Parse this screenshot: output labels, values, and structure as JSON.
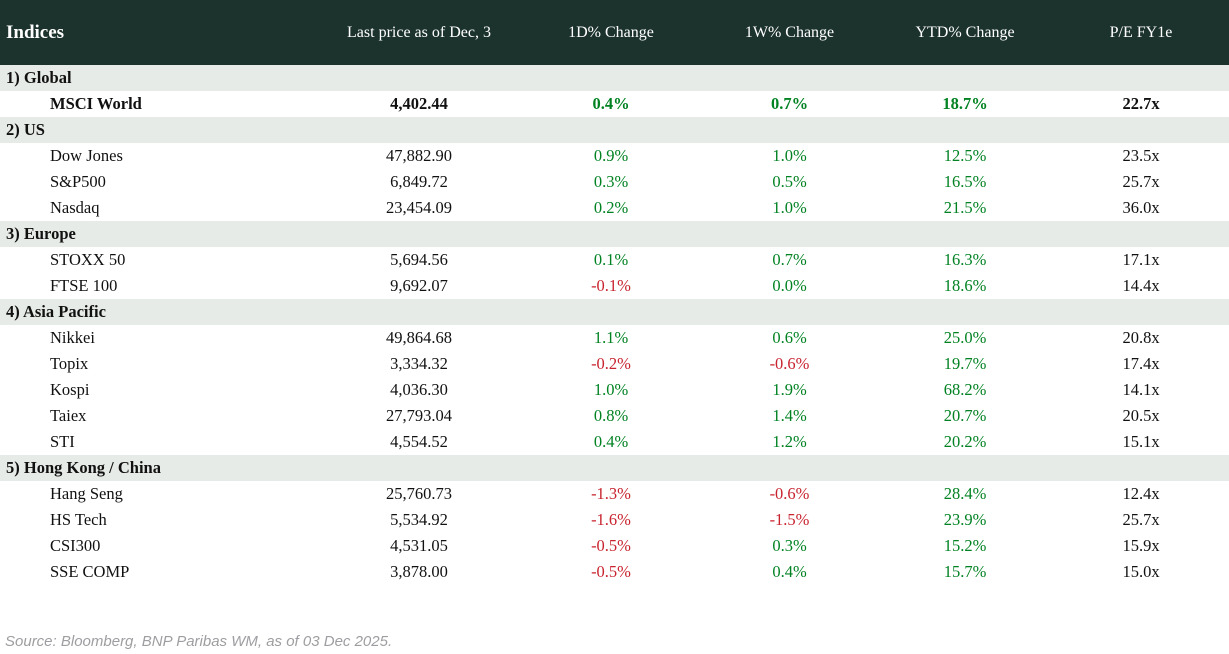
{
  "table": {
    "title": "Indices",
    "columns": [
      "Last price as of Dec, 3",
      "1D% Change",
      "1W% Change",
      "YTD% Change",
      "P/E FY1e"
    ],
    "sections": [
      {
        "label": "1) Global",
        "rows": [
          {
            "name": "MSCI World",
            "last_price": "4,402.44",
            "d1_change": "0.4%",
            "w1_change": "0.7%",
            "ytd_change": "18.7%",
            "pe": "22.7x",
            "bold": true
          }
        ]
      },
      {
        "label": "2) US",
        "rows": [
          {
            "name": "Dow Jones",
            "last_price": "47,882.90",
            "d1_change": "0.9%",
            "w1_change": "1.0%",
            "ytd_change": "12.5%",
            "pe": "23.5x",
            "bold": false
          },
          {
            "name": "S&P500",
            "last_price": "6,849.72",
            "d1_change": "0.3%",
            "w1_change": "0.5%",
            "ytd_change": "16.5%",
            "pe": "25.7x",
            "bold": false
          },
          {
            "name": "Nasdaq",
            "last_price": "23,454.09",
            "d1_change": "0.2%",
            "w1_change": "1.0%",
            "ytd_change": "21.5%",
            "pe": "36.0x",
            "bold": false
          }
        ]
      },
      {
        "label": "3) Europe",
        "rows": [
          {
            "name": "STOXX 50",
            "last_price": "5,694.56",
            "d1_change": "0.1%",
            "w1_change": "0.7%",
            "ytd_change": "16.3%",
            "pe": "17.1x",
            "bold": false
          },
          {
            "name": "FTSE 100",
            "last_price": "9,692.07",
            "d1_change": "-0.1%",
            "w1_change": "0.0%",
            "ytd_change": "18.6%",
            "pe": "14.4x",
            "bold": false
          }
        ]
      },
      {
        "label": "4) Asia Pacific",
        "rows": [
          {
            "name": "Nikkei",
            "last_price": "49,864.68",
            "d1_change": "1.1%",
            "w1_change": "0.6%",
            "ytd_change": "25.0%",
            "pe": "20.8x",
            "bold": false
          },
          {
            "name": "Topix",
            "last_price": "3,334.32",
            "d1_change": "-0.2%",
            "w1_change": "-0.6%",
            "ytd_change": "19.7%",
            "pe": "17.4x",
            "bold": false
          },
          {
            "name": "Kospi",
            "last_price": "4,036.30",
            "d1_change": "1.0%",
            "w1_change": "1.9%",
            "ytd_change": "68.2%",
            "pe": "14.1x",
            "bold": false
          },
          {
            "name": "Taiex",
            "last_price": "27,793.04",
            "d1_change": "0.8%",
            "w1_change": "1.4%",
            "ytd_change": "20.7%",
            "pe": "20.5x",
            "bold": false
          },
          {
            "name": "STI",
            "last_price": "4,554.52",
            "d1_change": "0.4%",
            "w1_change": "1.2%",
            "ytd_change": "20.2%",
            "pe": "15.1x",
            "bold": false
          }
        ]
      },
      {
        "label": "5) Hong Kong / China",
        "rows": [
          {
            "name": "Hang Seng",
            "last_price": "25,760.73",
            "d1_change": "-1.3%",
            "w1_change": "-0.6%",
            "ytd_change": "28.4%",
            "pe": "12.4x",
            "bold": false
          },
          {
            "name": "HS Tech",
            "last_price": "5,534.92",
            "d1_change": "-1.6%",
            "w1_change": "-1.5%",
            "ytd_change": "23.9%",
            "pe": "25.7x",
            "bold": false
          },
          {
            "name": "CSI300",
            "last_price": "4,531.05",
            "d1_change": "-0.5%",
            "w1_change": "0.3%",
            "ytd_change": "15.2%",
            "pe": "15.9x",
            "bold": false
          },
          {
            "name": "SSE COMP",
            "last_price": "3,878.00",
            "d1_change": "-0.5%",
            "w1_change": "0.4%",
            "ytd_change": "15.7%",
            "pe": "15.0x",
            "bold": false
          }
        ]
      }
    ]
  },
  "chart_data": {
    "type": "table",
    "title": "Indices",
    "columns": [
      "Indices",
      "Last price as of Dec, 3",
      "1D% Change",
      "1W% Change",
      "YTD% Change",
      "P/E FY1e"
    ],
    "rows": [
      [
        "MSCI World",
        4402.44,
        0.4,
        0.7,
        18.7,
        22.7
      ],
      [
        "Dow Jones",
        47882.9,
        0.9,
        1.0,
        12.5,
        23.5
      ],
      [
        "S&P500",
        6849.72,
        0.3,
        0.5,
        16.5,
        25.7
      ],
      [
        "Nasdaq",
        23454.09,
        0.2,
        1.0,
        21.5,
        36.0
      ],
      [
        "STOXX 50",
        5694.56,
        0.1,
        0.7,
        16.3,
        17.1
      ],
      [
        "FTSE 100",
        9692.07,
        -0.1,
        0.0,
        18.6,
        14.4
      ],
      [
        "Nikkei",
        49864.68,
        1.1,
        0.6,
        25.0,
        20.8
      ],
      [
        "Topix",
        3334.32,
        -0.2,
        -0.6,
        19.7,
        17.4
      ],
      [
        "Kospi",
        4036.3,
        1.0,
        1.9,
        68.2,
        14.1
      ],
      [
        "Taiex",
        27793.04,
        0.8,
        1.4,
        20.7,
        20.5
      ],
      [
        "STI",
        4554.52,
        0.4,
        1.2,
        20.2,
        15.1
      ],
      [
        "Hang Seng",
        25760.73,
        -1.3,
        -0.6,
        28.4,
        12.4
      ],
      [
        "HS Tech",
        5534.92,
        -1.6,
        -1.5,
        23.9,
        25.7
      ],
      [
        "CSI300",
        4531.05,
        -0.5,
        0.3,
        15.2,
        15.9
      ],
      [
        "SSE COMP",
        3878.0,
        -0.5,
        0.4,
        15.7,
        15.0
      ]
    ]
  },
  "footer": {
    "source": "Source: Bloomberg, BNP Paribas WM, as of 03 Dec 2025."
  },
  "colors": {
    "header_bg": "#1c332d",
    "header_text": "#ffffff",
    "section_bg": "#e7ebe7",
    "positive": "#008222",
    "negative": "#c8232e",
    "text": "#111111",
    "footer_text": "#9e9ea2"
  }
}
